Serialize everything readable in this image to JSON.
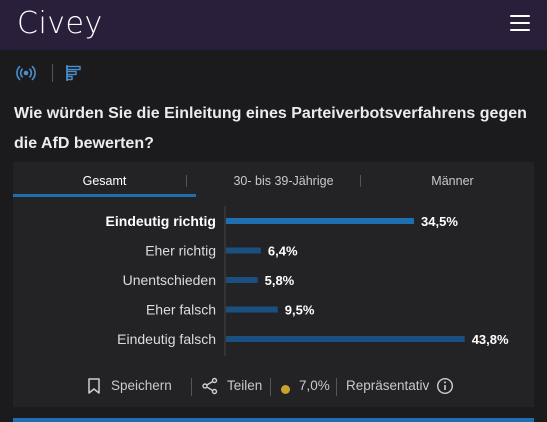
{
  "header": {
    "logo": "Civey",
    "menu_icon": "hamburger-menu-icon"
  },
  "toolbar": {
    "icons": [
      "live-signal-icon",
      "bar-chart-icon"
    ],
    "accent_color": "#1e6fb0"
  },
  "question": "Wie würden Sie die Einleitung eines Parteiverbotsverfahrens gegen die AfD bewerten?",
  "tabs": [
    {
      "label": "Gesamt",
      "active": true
    },
    {
      "label": "30- bis 39-Jährige",
      "active": false
    },
    {
      "label": "Männer",
      "active": false
    }
  ],
  "chart_data": {
    "type": "bar",
    "orientation": "horizontal",
    "categories": [
      "Eindeutig richtig",
      "Eher richtig",
      "Unentschieden",
      "Eher falsch",
      "Eindeutig falsch"
    ],
    "values": [
      34.5,
      6.4,
      5.8,
      9.5,
      43.8
    ],
    "value_labels": [
      "34,5%",
      "6,4%",
      "5,8%",
      "9,5%",
      "43,8%"
    ],
    "highlighted_category": "Eindeutig richtig",
    "bar_color": "#1a4f80",
    "highlight_color": "#1e6fb0",
    "xlim": [
      0,
      100
    ]
  },
  "footer": {
    "save_label": "Speichern",
    "share_label": "Teilen",
    "error_margin": "7,0%",
    "representative_label": "Repräsentativ",
    "status_color": "#c7a52c"
  }
}
